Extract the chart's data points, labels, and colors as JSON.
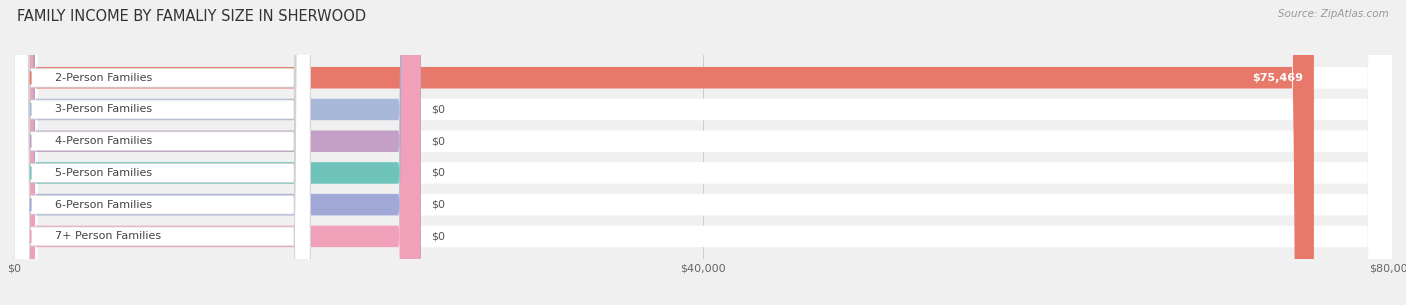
{
  "title": "FAMILY INCOME BY FAMALIY SIZE IN SHERWOOD",
  "source": "Source: ZipAtlas.com",
  "categories": [
    "2-Person Families",
    "3-Person Families",
    "4-Person Families",
    "5-Person Families",
    "6-Person Families",
    "7+ Person Families"
  ],
  "values": [
    75469,
    0,
    0,
    0,
    0,
    0
  ],
  "bar_colors": [
    "#e8796a",
    "#a8b8d8",
    "#c4a0c8",
    "#6ec4bb",
    "#a0a8d8",
    "#f0a0b8"
  ],
  "label_colors": [
    "#e8796a",
    "#a8b8d8",
    "#c4a0c8",
    "#6ec4bb",
    "#a0a8d8",
    "#f0a0b8"
  ],
  "value_labels": [
    "$75,469",
    "$0",
    "$0",
    "$0",
    "$0",
    "$0"
  ],
  "xlim": [
    0,
    80000
  ],
  "xticks": [
    0,
    40000,
    80000
  ],
  "xtick_labels": [
    "$0",
    "$40,000",
    "$80,000"
  ],
  "background_color": "#f0f0f0",
  "title_fontsize": 10.5,
  "label_fontsize": 8,
  "value_fontsize": 8,
  "source_fontsize": 7.5
}
